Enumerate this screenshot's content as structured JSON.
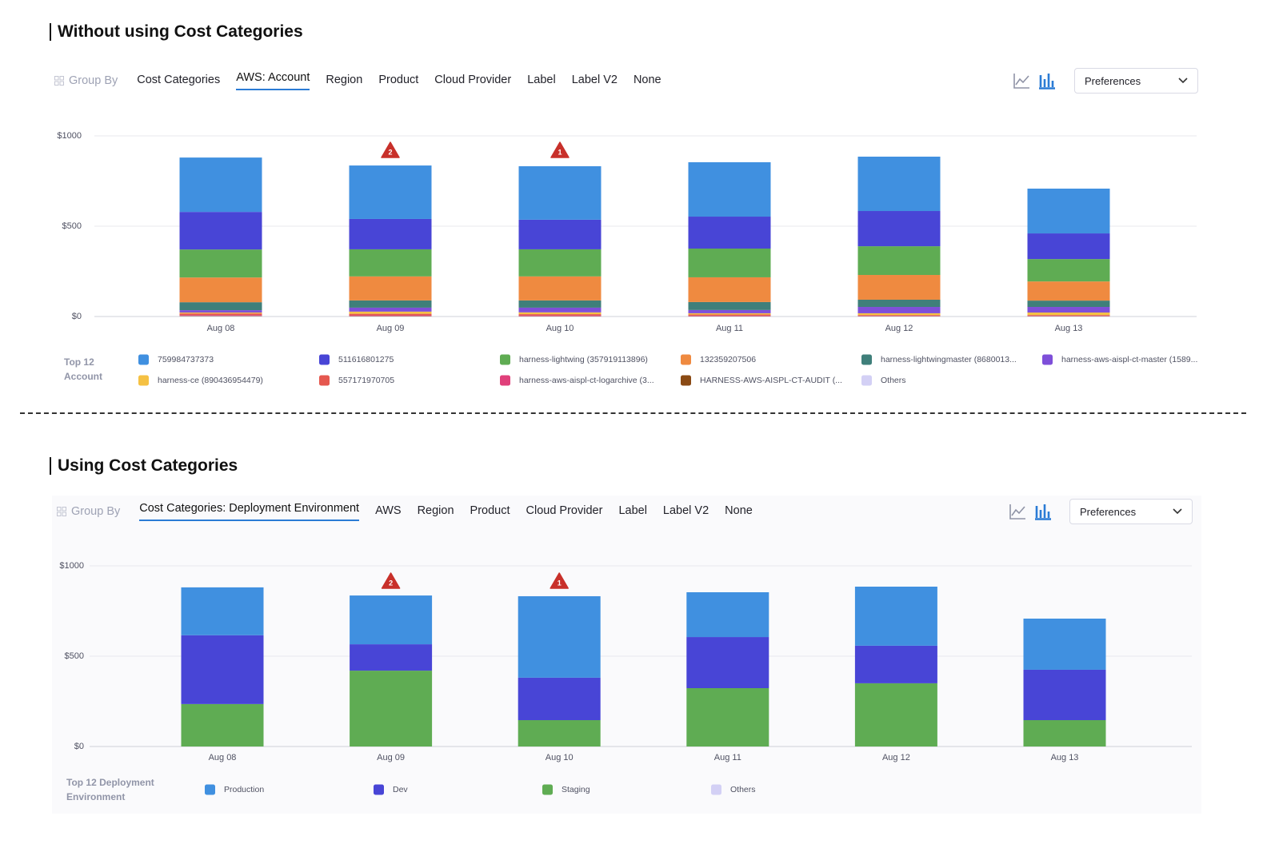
{
  "sections": [
    {
      "heading": "Without using Cost Categories",
      "group_by": "Group By",
      "tabs": [
        "Cost Categories",
        "AWS: Account",
        "Region",
        "Product",
        "Cloud Provider",
        "Label",
        "Label V2",
        "None"
      ],
      "active_tab": 1,
      "preferences": "Preferences"
    },
    {
      "heading": "Using Cost Categories",
      "group_by": "Group By",
      "tabs": [
        "Cost Categories: Deployment Environment",
        "AWS",
        "Region",
        "Product",
        "Cloud Provider",
        "Label",
        "Label V2",
        "None"
      ],
      "active_tab": 0,
      "preferences": "Preferences"
    }
  ],
  "chart_data": [
    {
      "type": "bar",
      "stacked": true,
      "grid": true,
      "categories": [
        "Aug 08",
        "Aug 09",
        "Aug 10",
        "Aug 11",
        "Aug 12",
        "Aug 13"
      ],
      "ylim": [
        0,
        1000
      ],
      "yticks": [
        {
          "value": 0,
          "label": "$0"
        },
        {
          "value": 500,
          "label": "$500"
        },
        {
          "value": 1000,
          "label": "$1000"
        }
      ],
      "legend_title": "Top 12 Account",
      "anomalies": [
        {
          "x": "Aug 09",
          "count": 2
        },
        {
          "x": "Aug 10",
          "count": 1
        }
      ],
      "series": [
        {
          "name": "759984737373",
          "color": "#4090e0",
          "values": [
            301,
            296,
            296,
            301,
            301,
            248
          ]
        },
        {
          "name": "511616801275",
          "color": "#4845d6",
          "values": [
            208,
            168,
            164,
            177,
            195,
            142
          ]
        },
        {
          "name": "harness-lightwing (357919113896)",
          "color": "#5fac53",
          "values": [
            155,
            150,
            150,
            159,
            159,
            124
          ]
        },
        {
          "name": "132359207506",
          "color": "#ef8a40",
          "values": [
            137,
            133,
            133,
            137,
            137,
            106
          ]
        },
        {
          "name": "harness-lightwingmaster (8680013...",
          "color": "#3f7f7a",
          "values": [
            44,
            40,
            40,
            44,
            40,
            35
          ]
        },
        {
          "name": "harness-aws-aispl-ct-master (1589...",
          "color": "#7e4fd9",
          "values": [
            13,
            22,
            26,
            18,
            35,
            31
          ]
        },
        {
          "name": "harness-ce (890436954479)",
          "color": "#f5c143",
          "values": [
            5,
            12,
            10,
            7,
            10,
            14
          ]
        },
        {
          "name": "557171970705",
          "color": "#e5584f",
          "values": [
            9,
            8,
            7,
            6,
            4,
            4
          ]
        },
        {
          "name": "harness-aws-aispl-ct-logarchive (3...",
          "color": "#e0407a",
          "values": [
            4,
            4,
            4,
            3,
            2,
            2
          ]
        },
        {
          "name": "HARNESS-AWS-AISPL-CT-AUDIT (...",
          "color": "#8a4a14",
          "values": [
            2,
            2,
            1,
            1,
            1,
            1
          ]
        },
        {
          "name": "Others",
          "color": "#d3d0f5",
          "values": [
            2,
            1,
            1,
            1,
            1,
            1
          ]
        }
      ]
    },
    {
      "type": "bar",
      "stacked": true,
      "grid": true,
      "categories": [
        "Aug 08",
        "Aug 09",
        "Aug 10",
        "Aug 11",
        "Aug 12",
        "Aug 13"
      ],
      "ylim": [
        0,
        1000
      ],
      "yticks": [
        {
          "value": 0,
          "label": "$0"
        },
        {
          "value": 500,
          "label": "$500"
        },
        {
          "value": 1000,
          "label": "$1000"
        }
      ],
      "legend_title": "Top 12 Deployment Environment",
      "anomalies": [
        {
          "x": "Aug 09",
          "count": 2
        },
        {
          "x": "Aug 10",
          "count": 1
        }
      ],
      "series": [
        {
          "name": "Production",
          "color": "#4090e0",
          "values": [
            265,
            270,
            451,
            248,
            327,
            283
          ]
        },
        {
          "name": "Dev",
          "color": "#4845d6",
          "values": [
            381,
            146,
            235,
            283,
            208,
            279
          ]
        },
        {
          "name": "Staging",
          "color": "#5fac53",
          "values": [
            235,
            420,
            146,
            323,
            350,
            146
          ]
        },
        {
          "name": "Others",
          "color": "#d3d0f5",
          "values": [
            0,
            0,
            0,
            0,
            0,
            0
          ]
        }
      ]
    }
  ]
}
